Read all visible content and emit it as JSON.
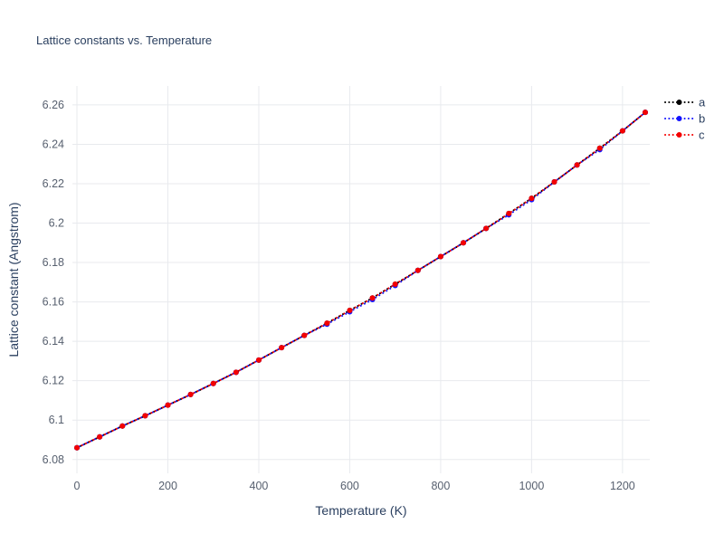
{
  "title": "Lattice constants vs. Temperature",
  "chart_data": {
    "type": "line",
    "title": "Lattice constants vs. Temperature",
    "xlabel": "Temperature (K)",
    "ylabel": "Lattice constant (Angstrom)",
    "line_style": "dotted",
    "markers": true,
    "grid": true,
    "legend_position": "top-right-outside",
    "x_range": [
      -10,
      1260
    ],
    "y_range": [
      6.073,
      6.2696
    ],
    "x_ticks": {
      "values": [
        0,
        200,
        400,
        600,
        800,
        1000,
        1200
      ],
      "labels": [
        "0",
        "200",
        "400",
        "600",
        "800",
        "1000",
        "1200"
      ]
    },
    "y_ticks": {
      "values": [
        6.08,
        6.1,
        6.12,
        6.14,
        6.16,
        6.18,
        6.2,
        6.22,
        6.24,
        6.26
      ],
      "labels": [
        "6.08",
        "6.1",
        "6.12",
        "6.14",
        "6.16",
        "6.18",
        "6.2",
        "6.22",
        "6.24",
        "6.26"
      ]
    },
    "x": [
      0,
      50,
      100,
      150,
      200,
      250,
      300,
      350,
      400,
      450,
      500,
      550,
      600,
      650,
      700,
      750,
      800,
      850,
      900,
      950,
      1000,
      1050,
      1100,
      1150,
      1200,
      1250
    ],
    "series": [
      {
        "name": "a",
        "color": "#000000",
        "values": [
          6.086,
          6.0915,
          6.097,
          6.1022,
          6.1076,
          6.113,
          6.1186,
          6.1243,
          6.1305,
          6.1368,
          6.143,
          6.1492,
          6.1557,
          6.162,
          6.169,
          6.176,
          6.183,
          6.19,
          6.1973,
          6.2049,
          6.2126,
          6.2209,
          6.2295,
          6.238,
          6.2468,
          6.2562
        ]
      },
      {
        "name": "b",
        "color": "#1414ff",
        "values": [
          6.086,
          6.0915,
          6.097,
          6.1022,
          6.1076,
          6.113,
          6.1186,
          6.1243,
          6.1305,
          6.1368,
          6.143,
          6.1487,
          6.155,
          6.1612,
          6.1683,
          6.176,
          6.183,
          6.19,
          6.1973,
          6.2042,
          6.2119,
          6.2209,
          6.2295,
          6.2373,
          6.2468,
          6.2562
        ]
      },
      {
        "name": "c",
        "color": "#f40000",
        "values": [
          6.086,
          6.0915,
          6.097,
          6.1022,
          6.1076,
          6.113,
          6.1186,
          6.1243,
          6.1305,
          6.1368,
          6.143,
          6.1492,
          6.1557,
          6.162,
          6.169,
          6.176,
          6.183,
          6.19,
          6.1973,
          6.2049,
          6.2126,
          6.2209,
          6.2295,
          6.238,
          6.2468,
          6.2562
        ]
      }
    ],
    "style": {
      "grid_color": "#e8eaee",
      "tick_label_color": "#57606f",
      "title_color": "#2a3f5f",
      "background": "#ffffff"
    }
  }
}
